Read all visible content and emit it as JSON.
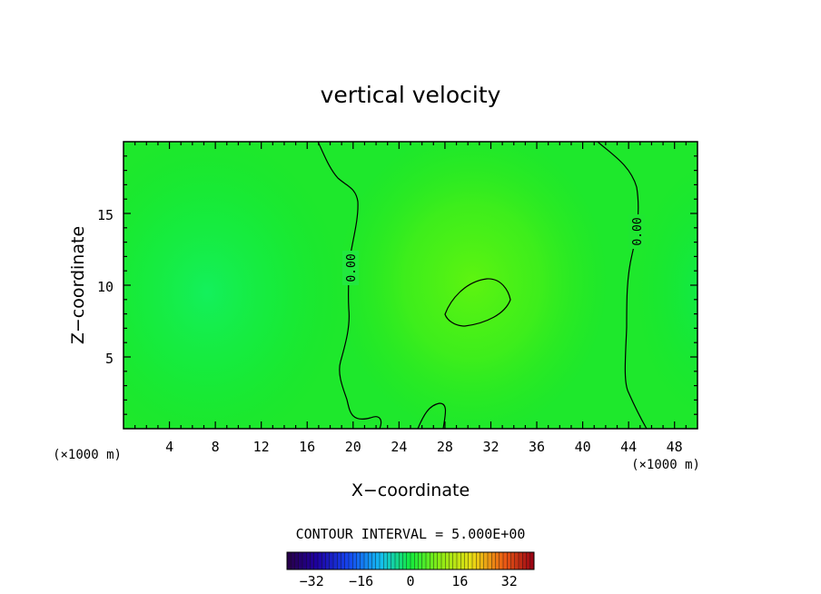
{
  "chart_data": {
    "type": "heatmap",
    "title": "vertical velocity",
    "xlabel": "X−coordinate",
    "ylabel": "Z−coordinate",
    "x_unit": "(×1000 m)",
    "y_unit": "(×1000 m)",
    "xlim": [
      0,
      50
    ],
    "ylim": [
      0,
      20
    ],
    "x_ticks": [
      "4",
      "8",
      "12",
      "16",
      "20",
      "24",
      "28",
      "32",
      "36",
      "40",
      "44",
      "48"
    ],
    "y_ticks": [
      "5",
      "10",
      "15"
    ],
    "contour_interval_text": "CONTOUR INTERVAL = 5.000E+00",
    "contour_labels": [
      {
        "text": "0.00",
        "x": 20,
        "z": 11
      },
      {
        "text": "0.00",
        "x": 44,
        "z": 14
      }
    ],
    "field_features": [
      {
        "kind": "minimum",
        "x": 8,
        "z": 9,
        "value": -3
      },
      {
        "kind": "maximum",
        "x": 31,
        "z": 9,
        "value": 6
      }
    ],
    "colorbar": {
      "min": -40,
      "max": 40,
      "ticks": [
        "−32",
        "−16",
        "0",
        "16",
        "32"
      ],
      "tick_values": [
        -32,
        -16,
        0,
        16,
        32
      ]
    }
  }
}
